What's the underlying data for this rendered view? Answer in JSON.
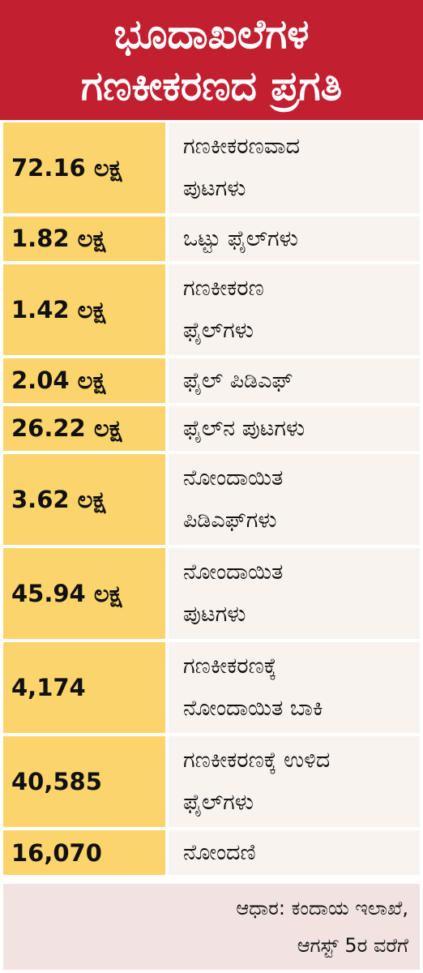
{
  "header": {
    "title_lines": [
      "ಭೂದಾಖಲೆಗಳ",
      "ಗಣಕೀಕರಣದ ಪ್ರಗತಿ"
    ]
  },
  "table": {
    "rows": [
      {
        "value": "72.16 ಲಕ್ಷ",
        "label": [
          "ಗಣಕೀಕರಣವಾದ",
          "ಪುಟಗಳು"
        ]
      },
      {
        "value": "1.82 ಲಕ್ಷ",
        "label": [
          "ಒಟ್ಟು ಫೈಲ್‌ಗಳು"
        ]
      },
      {
        "value": "1.42 ಲಕ್ಷ",
        "label": [
          "ಗಣಕೀಕರಣ",
          "ಫೈಲ್‌ಗಳು"
        ]
      },
      {
        "value": "2.04 ಲಕ್ಷ",
        "label": [
          "ಫೈಲ್ ಪಿಡಿಎಫ್"
        ]
      },
      {
        "value": "26.22 ಲಕ್ಷ",
        "label": [
          "ಫೈಲ್‌ನ ಪುಟಗಳು"
        ]
      },
      {
        "value": "3.62 ಲಕ್ಷ",
        "label": [
          "ನೋಂದಾಯಿತ",
          "ಪಿಡಿಎಫ್‌ಗಳು"
        ]
      },
      {
        "value": "45.94 ಲಕ್ಷ",
        "label": [
          "ನೋಂದಾಯಿತ",
          "ಪುಟಗಳು"
        ]
      },
      {
        "value": "4,174",
        "label": [
          "ಗಣಕೀಕರಣಕ್ಕೆ",
          "ನೋಂದಾಯಿತ ಬಾಕಿ"
        ]
      },
      {
        "value": "40,585",
        "label": [
          "ಗಣಕೀಕರಣಕ್ಕೆ ಉಳಿದ",
          "ಫೈಲ್‌ಗಳು"
        ]
      },
      {
        "value": "16,070",
        "label": [
          "ನೋಂದಣಿ"
        ]
      }
    ]
  },
  "source": {
    "lines": [
      "ಆಧಾರ: ಕಂದಾಯ ಇಲಾಖೆ,",
      "ಆಗಸ್ಟ್ 5ರ ವರೆಗೆ"
    ]
  }
}
